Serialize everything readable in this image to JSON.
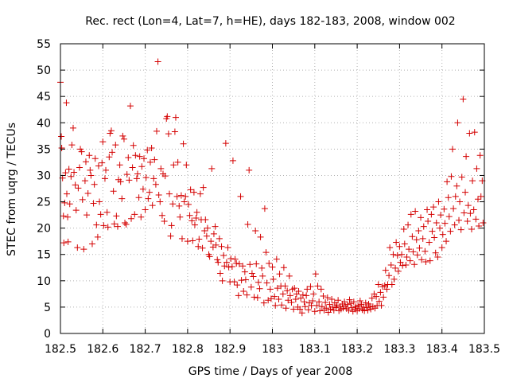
{
  "chart_data": {
    "type": "scatter",
    "title": "Rec. rect (Lon=4, Lat=7, h=HE), days 182-183, 2008, window 002",
    "xlabel": "GPS time / Days of year 2008",
    "ylabel": "STEC from uqrg / TECUs",
    "xlim": [
      182.5,
      183.5
    ],
    "ylim": [
      0,
      55
    ],
    "xticks": [
      182.5,
      182.6,
      182.7,
      182.8,
      182.9,
      183,
      183.1,
      183.2,
      183.3,
      183.4,
      183.5
    ],
    "xtick_labels": [
      "182.5",
      "182.6",
      "182.7",
      "182.8",
      "182.9",
      "183",
      "183.1",
      "183.2",
      "183.3",
      "183.4",
      "183.5"
    ],
    "yticks": [
      0,
      5,
      10,
      15,
      20,
      25,
      30,
      35,
      40,
      45,
      50,
      55
    ],
    "ytick_labels": [
      "0",
      "5",
      "10",
      "15",
      "20",
      "25",
      "30",
      "35",
      "40",
      "45",
      "50",
      "55"
    ],
    "grid": true,
    "marker": "+",
    "marker_color": "#d40000",
    "points": [
      [
        182.5,
        47.7
      ],
      [
        182.502,
        37.4
      ],
      [
        182.503,
        35.2
      ],
      [
        182.505,
        29.5
      ],
      [
        182.507,
        22.3
      ],
      [
        182.508,
        17.2
      ],
      [
        182.51,
        24.8
      ],
      [
        182.512,
        30.5
      ],
      [
        182.514,
        43.8
      ],
      [
        182.515,
        26.5
      ],
      [
        182.517,
        22.1
      ],
      [
        182.518,
        17.4
      ],
      [
        182.52,
        31.2
      ],
      [
        182.522,
        24.6
      ],
      [
        182.525,
        29.8
      ],
      [
        182.527,
        35.8
      ],
      [
        182.53,
        39.0
      ],
      [
        182.532,
        30.6
      ],
      [
        182.535,
        28.2
      ],
      [
        182.537,
        23.4
      ],
      [
        182.54,
        16.3
      ],
      [
        182.542,
        27.6
      ],
      [
        182.545,
        31.5
      ],
      [
        182.547,
        35.0
      ],
      [
        182.55,
        34.5
      ],
      [
        182.552,
        25.4
      ],
      [
        182.555,
        16.0
      ],
      [
        182.558,
        29.0
      ],
      [
        182.56,
        32.6
      ],
      [
        182.562,
        22.5
      ],
      [
        182.565,
        26.6
      ],
      [
        182.568,
        33.8
      ],
      [
        182.57,
        31.0
      ],
      [
        182.572,
        30.0
      ],
      [
        182.575,
        17.0
      ],
      [
        182.578,
        24.7
      ],
      [
        182.58,
        28.3
      ],
      [
        182.582,
        33.2
      ],
      [
        182.585,
        20.6
      ],
      [
        182.588,
        18.3
      ],
      [
        182.59,
        31.8
      ],
      [
        182.592,
        25.0
      ],
      [
        182.595,
        22.6
      ],
      [
        182.598,
        32.4
      ],
      [
        182.6,
        36.4
      ],
      [
        182.602,
        20.5
      ],
      [
        182.605,
        29.4
      ],
      [
        182.607,
        31.0
      ],
      [
        182.61,
        23.0
      ],
      [
        182.612,
        20.2
      ],
      [
        182.615,
        33.5
      ],
      [
        182.617,
        38.0
      ],
      [
        182.62,
        38.5
      ],
      [
        182.622,
        34.4
      ],
      [
        182.625,
        27.0
      ],
      [
        182.627,
        20.8
      ],
      [
        182.63,
        35.8
      ],
      [
        182.632,
        22.3
      ],
      [
        182.635,
        20.3
      ],
      [
        182.637,
        29.2
      ],
      [
        182.64,
        32.0
      ],
      [
        182.642,
        28.8
      ],
      [
        182.645,
        25.6
      ],
      [
        182.647,
        37.5
      ],
      [
        182.65,
        36.9
      ],
      [
        182.652,
        21.0
      ],
      [
        182.655,
        20.7
      ],
      [
        182.657,
        30.2
      ],
      [
        182.66,
        33.4
      ],
      [
        182.662,
        29.1
      ],
      [
        182.665,
        43.2
      ],
      [
        182.667,
        21.8
      ],
      [
        182.67,
        31.5
      ],
      [
        182.672,
        35.7
      ],
      [
        182.675,
        22.6
      ],
      [
        182.677,
        33.8
      ],
      [
        182.68,
        29.4
      ],
      [
        182.682,
        30.3
      ],
      [
        182.685,
        25.8
      ],
      [
        182.687,
        33.6
      ],
      [
        182.69,
        22.1
      ],
      [
        182.692,
        31.7
      ],
      [
        182.695,
        27.4
      ],
      [
        182.697,
        33.2
      ],
      [
        182.7,
        23.5
      ],
      [
        182.702,
        29.6
      ],
      [
        182.705,
        34.8
      ],
      [
        182.707,
        25.6
      ],
      [
        182.71,
        26.8
      ],
      [
        182.712,
        32.5
      ],
      [
        182.715,
        35.2
      ],
      [
        182.717,
        24.3
      ],
      [
        182.72,
        29.4
      ],
      [
        182.722,
        33.0
      ],
      [
        182.725,
        28.3
      ],
      [
        182.727,
        38.4
      ],
      [
        182.73,
        51.6
      ],
      [
        182.732,
        26.3
      ],
      [
        182.735,
        25.0
      ],
      [
        182.737,
        31.3
      ],
      [
        182.74,
        22.4
      ],
      [
        182.742,
        30.3
      ],
      [
        182.745,
        21.3
      ],
      [
        182.747,
        29.9
      ],
      [
        182.75,
        40.8
      ],
      [
        182.752,
        41.2
      ],
      [
        182.755,
        37.9
      ],
      [
        182.757,
        26.5
      ],
      [
        182.76,
        18.5
      ],
      [
        182.762,
        20.5
      ],
      [
        182.765,
        24.6
      ],
      [
        182.767,
        32.0
      ],
      [
        182.77,
        38.3
      ],
      [
        182.772,
        41.0
      ],
      [
        182.775,
        26.0
      ],
      [
        182.777,
        32.5
      ],
      [
        182.78,
        24.2
      ],
      [
        182.782,
        22.1
      ],
      [
        182.785,
        26.2
      ],
      [
        182.787,
        18.0
      ],
      [
        182.79,
        36.0
      ],
      [
        182.792,
        25.0
      ],
      [
        182.795,
        26.0
      ],
      [
        182.797,
        32.0
      ],
      [
        182.8,
        17.5
      ],
      [
        182.802,
        24.5
      ],
      [
        182.805,
        22.4
      ],
      [
        182.807,
        27.3
      ],
      [
        182.81,
        21.4
      ],
      [
        182.812,
        17.6
      ],
      [
        182.815,
        26.8
      ],
      [
        182.817,
        20.6
      ],
      [
        182.82,
        21.9
      ],
      [
        182.822,
        23.0
      ],
      [
        182.825,
        16.5
      ],
      [
        182.827,
        17.9
      ],
      [
        182.83,
        26.5
      ],
      [
        182.832,
        21.6
      ],
      [
        182.835,
        16.2
      ],
      [
        182.837,
        27.7
      ],
      [
        182.84,
        19.5
      ],
      [
        182.842,
        21.6
      ],
      [
        182.845,
        18.5
      ],
      [
        182.847,
        20.0
      ],
      [
        182.85,
        15.0
      ],
      [
        182.852,
        14.6
      ],
      [
        182.855,
        17.5
      ],
      [
        182.857,
        31.3
      ],
      [
        182.86,
        16.4
      ],
      [
        182.862,
        18.9
      ],
      [
        182.865,
        20.3
      ],
      [
        182.867,
        16.8
      ],
      [
        182.87,
        14.0
      ],
      [
        182.872,
        13.5
      ],
      [
        182.875,
        18.0
      ],
      [
        182.877,
        11.4
      ],
      [
        182.88,
        16.5
      ],
      [
        182.882,
        10.0
      ],
      [
        182.885,
        14.8
      ],
      [
        182.887,
        12.8
      ],
      [
        182.89,
        36.1
      ],
      [
        182.892,
        13.5
      ],
      [
        182.895,
        16.3
      ],
      [
        182.897,
        12.6
      ],
      [
        182.9,
        9.8
      ],
      [
        182.902,
        14.2
      ],
      [
        182.905,
        12.7
      ],
      [
        182.907,
        32.8
      ],
      [
        182.91,
        9.8
      ],
      [
        182.912,
        14.1
      ],
      [
        182.915,
        13.3
      ],
      [
        182.917,
        9.2
      ],
      [
        182.92,
        7.2
      ],
      [
        182.922,
        13.2
      ],
      [
        182.925,
        26.0
      ],
      [
        182.927,
        10.1
      ],
      [
        182.93,
        12.8
      ],
      [
        182.932,
        8.0
      ],
      [
        182.935,
        11.7
      ],
      [
        182.937,
        10.2
      ],
      [
        182.94,
        7.3
      ],
      [
        182.942,
        20.7
      ],
      [
        182.945,
        31.0
      ],
      [
        182.947,
        13.1
      ],
      [
        182.95,
        8.8
      ],
      [
        182.952,
        11.4
      ],
      [
        182.955,
        10.8
      ],
      [
        182.957,
        6.9
      ],
      [
        182.96,
        19.5
      ],
      [
        182.962,
        13.2
      ],
      [
        182.965,
        6.8
      ],
      [
        182.967,
        9.7
      ],
      [
        182.97,
        8.5
      ],
      [
        182.972,
        18.3
      ],
      [
        182.975,
        12.4
      ],
      [
        182.977,
        10.9
      ],
      [
        182.98,
        5.8
      ],
      [
        182.982,
        23.7
      ],
      [
        182.985,
        15.4
      ],
      [
        182.987,
        9.6
      ],
      [
        182.99,
        6.3
      ],
      [
        182.992,
        13.3
      ],
      [
        182.995,
        8.4
      ],
      [
        182.997,
        6.6
      ],
      [
        183.0,
        12.6
      ],
      [
        183.002,
        10.3
      ],
      [
        183.005,
        7.0
      ],
      [
        183.007,
        5.3
      ],
      [
        183.01,
        14.1
      ],
      [
        183.012,
        8.6
      ],
      [
        183.015,
        6.5
      ],
      [
        183.017,
        11.3
      ],
      [
        183.02,
        9.0
      ],
      [
        183.022,
        5.4
      ],
      [
        183.025,
        7.5
      ],
      [
        183.027,
        12.5
      ],
      [
        183.03,
        9.0
      ],
      [
        183.032,
        4.8
      ],
      [
        183.035,
        8.1
      ],
      [
        183.037,
        6.3
      ],
      [
        183.04,
        10.9
      ],
      [
        183.042,
        7.2
      ],
      [
        183.045,
        5.9
      ],
      [
        183.047,
        8.4
      ],
      [
        183.05,
        4.6
      ],
      [
        183.052,
        8.6
      ],
      [
        183.055,
        6.5
      ],
      [
        183.057,
        7.5
      ],
      [
        183.06,
        5.0
      ],
      [
        183.062,
        8.0
      ],
      [
        183.065,
        4.6
      ],
      [
        183.067,
        6.7
      ],
      [
        183.07,
        3.9
      ],
      [
        183.072,
        7.3
      ],
      [
        183.075,
        6.0
      ],
      [
        183.077,
        5.1
      ],
      [
        183.08,
        7.2
      ],
      [
        183.082,
        8.4
      ],
      [
        183.085,
        4.5
      ],
      [
        183.087,
        5.8
      ],
      [
        183.09,
        8.9
      ],
      [
        183.092,
        5.3
      ],
      [
        183.095,
        6.2
      ],
      [
        183.097,
        7.5
      ],
      [
        183.1,
        4.2
      ],
      [
        183.102,
        11.3
      ],
      [
        183.105,
        5.3
      ],
      [
        183.107,
        9.0
      ],
      [
        183.11,
        6.0
      ],
      [
        183.112,
        4.3
      ],
      [
        183.115,
        8.4
      ],
      [
        183.117,
        5.1
      ],
      [
        183.12,
        7.1
      ],
      [
        183.122,
        4.4
      ],
      [
        183.125,
        5.9
      ],
      [
        183.127,
        4.8
      ],
      [
        183.13,
        6.8
      ],
      [
        183.132,
        4.0
      ],
      [
        183.135,
        5.5
      ],
      [
        183.137,
        4.6
      ],
      [
        183.14,
        6.5
      ],
      [
        183.142,
        5.0
      ],
      [
        183.145,
        4.4
      ],
      [
        183.147,
        5.8
      ],
      [
        183.15,
        4.9
      ],
      [
        183.152,
        5.4
      ],
      [
        183.155,
        6.3
      ],
      [
        183.157,
        4.3
      ],
      [
        183.16,
        5.1
      ],
      [
        183.162,
        4.6
      ],
      [
        183.165,
        5.6
      ],
      [
        183.167,
        4.8
      ],
      [
        183.17,
        6.0
      ],
      [
        183.172,
        5.2
      ],
      [
        183.175,
        4.7
      ],
      [
        183.177,
        5.5
      ],
      [
        183.18,
        4.4
      ],
      [
        183.182,
        6.4
      ],
      [
        183.185,
        5.7
      ],
      [
        183.187,
        4.9
      ],
      [
        183.19,
        4.2
      ],
      [
        183.192,
        6.0
      ],
      [
        183.195,
        4.6
      ],
      [
        183.197,
        5.1
      ],
      [
        183.2,
        4.3
      ],
      [
        183.202,
        5.3
      ],
      [
        183.205,
        4.7
      ],
      [
        183.207,
        6.2
      ],
      [
        183.21,
        5.5
      ],
      [
        183.212,
        4.5
      ],
      [
        183.215,
        5.0
      ],
      [
        183.217,
        4.3
      ],
      [
        183.22,
        5.8
      ],
      [
        183.222,
        4.9
      ],
      [
        183.225,
        4.4
      ],
      [
        183.227,
        5.6
      ],
      [
        183.23,
        5.2
      ],
      [
        183.232,
        4.6
      ],
      [
        183.235,
        6.7
      ],
      [
        183.237,
        5.1
      ],
      [
        183.24,
        7.5
      ],
      [
        183.242,
        4.8
      ],
      [
        183.245,
        7.0
      ],
      [
        183.247,
        5.3
      ],
      [
        183.25,
        9.3
      ],
      [
        183.252,
        6.1
      ],
      [
        183.255,
        7.8
      ],
      [
        183.257,
        5.3
      ],
      [
        183.26,
        8.9
      ],
      [
        183.262,
        6.9
      ],
      [
        183.265,
        9.1
      ],
      [
        183.267,
        12.0
      ],
      [
        183.27,
        8.4
      ],
      [
        183.272,
        9.3
      ],
      [
        183.275,
        11.0
      ],
      [
        183.277,
        16.3
      ],
      [
        183.28,
        13.0
      ],
      [
        183.282,
        9.3
      ],
      [
        183.285,
        15.0
      ],
      [
        183.287,
        10.3
      ],
      [
        183.29,
        12.4
      ],
      [
        183.292,
        17.3
      ],
      [
        183.295,
        14.8
      ],
      [
        183.297,
        11.8
      ],
      [
        183.3,
        16.5
      ],
      [
        183.302,
        13.5
      ],
      [
        183.305,
        15.0
      ],
      [
        183.307,
        12.9
      ],
      [
        183.31,
        19.8
      ],
      [
        183.312,
        17.0
      ],
      [
        183.315,
        13.0
      ],
      [
        183.317,
        14.5
      ],
      [
        183.32,
        20.6
      ],
      [
        183.322,
        16.0
      ],
      [
        183.325,
        13.8
      ],
      [
        183.327,
        22.6
      ],
      [
        183.33,
        18.4
      ],
      [
        183.332,
        15.5
      ],
      [
        183.335,
        13.1
      ],
      [
        183.337,
        23.2
      ],
      [
        183.34,
        17.8
      ],
      [
        183.342,
        14.9
      ],
      [
        183.345,
        19.5
      ],
      [
        183.347,
        16.2
      ],
      [
        183.35,
        22.0
      ],
      [
        183.352,
        14.0
      ],
      [
        183.355,
        18.0
      ],
      [
        183.357,
        20.3
      ],
      [
        183.36,
        15.6
      ],
      [
        183.362,
        13.6
      ],
      [
        183.365,
        23.5
      ],
      [
        183.367,
        21.3
      ],
      [
        183.37,
        17.3
      ],
      [
        183.372,
        13.8
      ],
      [
        183.375,
        22.6
      ],
      [
        183.377,
        19.4
      ],
      [
        183.38,
        24.0
      ],
      [
        183.382,
        18.2
      ],
      [
        183.385,
        15.3
      ],
      [
        183.387,
        21.0
      ],
      [
        183.39,
        14.5
      ],
      [
        183.392,
        25.0
      ],
      [
        183.395,
        20.0
      ],
      [
        183.397,
        22.5
      ],
      [
        183.4,
        16.3
      ],
      [
        183.402,
        18.8
      ],
      [
        183.405,
        23.6
      ],
      [
        183.407,
        20.9
      ],
      [
        183.41,
        17.5
      ],
      [
        183.412,
        28.8
      ],
      [
        183.415,
        25.8
      ],
      [
        183.417,
        22.2
      ],
      [
        183.42,
        19.4
      ],
      [
        183.422,
        29.8
      ],
      [
        183.425,
        35.0
      ],
      [
        183.427,
        23.7
      ],
      [
        183.43,
        20.6
      ],
      [
        183.432,
        26.0
      ],
      [
        183.435,
        28.0
      ],
      [
        183.437,
        40.0
      ],
      [
        183.44,
        21.5
      ],
      [
        183.442,
        25.0
      ],
      [
        183.445,
        19.7
      ],
      [
        183.447,
        29.7
      ],
      [
        183.45,
        44.5
      ],
      [
        183.452,
        22.9
      ],
      [
        183.455,
        26.8
      ],
      [
        183.457,
        33.6
      ],
      [
        183.46,
        21.3
      ],
      [
        183.462,
        24.3
      ],
      [
        183.465,
        38.0
      ],
      [
        183.467,
        22.8
      ],
      [
        183.47,
        19.8
      ],
      [
        183.472,
        29.0
      ],
      [
        183.475,
        23.5
      ],
      [
        183.477,
        38.2
      ],
      [
        183.48,
        21.7
      ],
      [
        183.482,
        31.3
      ],
      [
        183.485,
        25.5
      ],
      [
        183.487,
        20.4
      ],
      [
        183.49,
        33.8
      ],
      [
        183.492,
        26.0
      ],
      [
        183.495,
        29.0
      ],
      [
        183.497,
        21.0
      ]
    ]
  }
}
